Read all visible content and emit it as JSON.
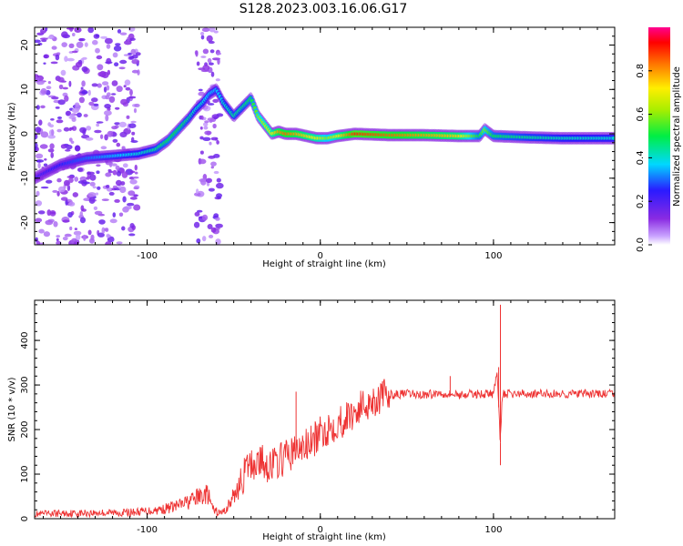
{
  "figure_title": "S128.2023.003.16.06.G17",
  "chart_data": [
    {
      "type": "heatmap",
      "xlabel": "Height of straight line (km)",
      "ylabel": "Frequency (Hz)",
      "xlim": [
        -165,
        170
      ],
      "ylim": [
        -25,
        24
      ],
      "xticks": [
        -100,
        0,
        100
      ],
      "yticks": [
        -20,
        -10,
        0,
        10,
        20
      ],
      "colorbar": {
        "label": "Normalized spectral amplitude",
        "range": [
          0.0,
          1.0
        ],
        "ticks": [
          0.0,
          0.2,
          0.4,
          0.6,
          0.8
        ]
      },
      "ridge": {
        "x": [
          -165,
          -150,
          -135,
          -120,
          -105,
          -95,
          -88,
          -82,
          -76,
          -72,
          -68,
          -64,
          -60,
          -56,
          -50,
          -45,
          -40,
          -36,
          -32,
          -28,
          -24,
          -20,
          -14,
          -8,
          -2,
          4,
          10,
          20,
          40,
          60,
          80,
          92,
          95,
          100,
          120,
          140,
          170
        ],
        "y": [
          -10,
          -7,
          -5.5,
          -5,
          -4.5,
          -3.5,
          -1.5,
          1,
          3.5,
          5.5,
          7,
          9,
          10,
          7,
          4,
          6,
          8,
          4,
          2,
          0,
          0.5,
          0,
          0,
          -0.5,
          -1,
          -1,
          -0.5,
          0,
          -0.3,
          -0.3,
          -0.5,
          -0.5,
          1,
          -0.5,
          -0.8,
          -1,
          -1
        ],
        "amp": [
          0.2,
          0.25,
          0.3,
          0.35,
          0.4,
          0.45,
          0.5,
          0.5,
          0.45,
          0.4,
          0.4,
          0.35,
          0.35,
          0.4,
          0.45,
          0.45,
          0.5,
          0.6,
          0.65,
          0.7,
          0.8,
          0.85,
          0.8,
          0.75,
          0.7,
          0.6,
          0.7,
          0.9,
          0.85,
          0.8,
          0.75,
          0.5,
          0.6,
          0.5,
          0.45,
          0.42,
          0.4
        ]
      }
    },
    {
      "type": "line",
      "xlabel": "Height of straight line (km)",
      "ylabel": "SNR (10 * v/v)",
      "xlim": [
        -165,
        170
      ],
      "ylim": [
        0,
        490
      ],
      "xticks": [
        -100,
        0,
        100
      ],
      "yticks": [
        0,
        100,
        200,
        300,
        400
      ],
      "color": "#ee3333",
      "series": [
        {
          "x": [
            -165,
            -150,
            -130,
            -110,
            -100,
            -90,
            -80,
            -75,
            -70,
            -65,
            -62,
            -58,
            -55,
            -50,
            -45,
            -42,
            -40,
            -35,
            -30,
            -25,
            -20,
            -15,
            -10,
            -5,
            0,
            5,
            10,
            15,
            20,
            25,
            30,
            35,
            40,
            50,
            60,
            70,
            75,
            80,
            90,
            100,
            102,
            104,
            105,
            108,
            120,
            140,
            160,
            170
          ],
          "y": [
            10,
            12,
            13,
            14,
            17,
            22,
            32,
            40,
            50,
            55,
            20,
            12,
            18,
            50,
            90,
            115,
            120,
            130,
            120,
            125,
            140,
            150,
            160,
            170,
            190,
            205,
            215,
            225,
            240,
            255,
            265,
            272,
            278,
            280,
            278,
            282,
            280,
            278,
            280,
            280,
            330,
            170,
            280,
            280,
            280,
            280,
            280,
            280
          ]
        }
      ],
      "spikes": [
        {
          "x": -14,
          "y": 285
        },
        {
          "x": 75,
          "y": 320
        },
        {
          "x": 103,
          "y": 340
        },
        {
          "x": 104,
          "y": 480
        },
        {
          "x": 104,
          "y": 120
        }
      ]
    }
  ]
}
